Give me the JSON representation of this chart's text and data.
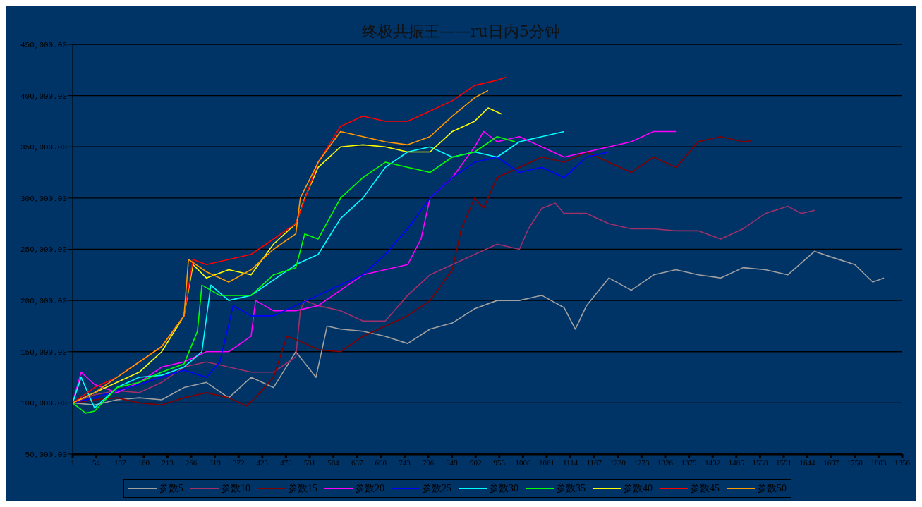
{
  "chart_data": {
    "type": "line",
    "title": "终极共振王——ru日内5分钟",
    "xlim": [
      1,
      1856
    ],
    "xticks": [
      1,
      54,
      107,
      160,
      213,
      266,
      319,
      372,
      425,
      478,
      531,
      584,
      637,
      690,
      743,
      796,
      849,
      902,
      955,
      1008,
      1061,
      1114,
      1167,
      1220,
      1273,
      1326,
      1379,
      1432,
      1485,
      1538,
      1591,
      1644,
      1697,
      1750,
      1803,
      1856
    ],
    "ylim": [
      50000,
      450000
    ],
    "yticks": [
      {
        "value": 50000,
        "label": "50,000.00"
      },
      {
        "value": 100000,
        "label": "100,000.00"
      },
      {
        "value": 150000,
        "label": "150,000.00"
      },
      {
        "value": 200000,
        "label": "200,000.00"
      },
      {
        "value": 250000,
        "label": "250,000.00"
      },
      {
        "value": 300000,
        "label": "300,000.00"
      },
      {
        "value": 350000,
        "label": "350,000.00"
      },
      {
        "value": 400000,
        "label": "400,000.00"
      },
      {
        "value": 450000,
        "label": "450,000.00"
      }
    ],
    "grid": "y",
    "legend": "bottom",
    "marker": "none",
    "line_style": "solid",
    "series": [
      {
        "name": "参数5",
        "color": "#a0a0a0",
        "x": [
          1,
          50,
          100,
          150,
          200,
          250,
          300,
          350,
          400,
          450,
          500,
          545,
          570,
          600,
          650,
          700,
          750,
          800,
          850,
          900,
          950,
          1000,
          1050,
          1100,
          1125,
          1150,
          1200,
          1250,
          1300,
          1350,
          1400,
          1450,
          1500,
          1550,
          1600,
          1660,
          1700,
          1750,
          1790,
          1815
        ],
        "values": [
          100000,
          98000,
          103000,
          105000,
          103000,
          115000,
          120000,
          105000,
          125000,
          115000,
          150000,
          125000,
          175000,
          172000,
          170000,
          165000,
          158000,
          172000,
          178000,
          192000,
          200000,
          200000,
          205000,
          193000,
          172000,
          195000,
          222000,
          210000,
          225000,
          230000,
          225000,
          222000,
          232000,
          230000,
          225000,
          248000,
          242000,
          235000,
          218000,
          222000
        ]
      },
      {
        "name": "参数10",
        "color": "#a0306a",
        "x": [
          1,
          50,
          100,
          150,
          200,
          250,
          300,
          350,
          400,
          450,
          500,
          510,
          520,
          550,
          600,
          650,
          700,
          750,
          800,
          850,
          900,
          950,
          1000,
          1020,
          1050,
          1080,
          1100,
          1150,
          1200,
          1250,
          1300,
          1350,
          1400,
          1450,
          1500,
          1550,
          1600,
          1630,
          1660
        ],
        "values": [
          100000,
          108000,
          112000,
          110000,
          120000,
          135000,
          140000,
          135000,
          130000,
          130000,
          145000,
          190000,
          200000,
          195000,
          190000,
          180000,
          180000,
          205000,
          225000,
          235000,
          245000,
          255000,
          250000,
          270000,
          290000,
          295000,
          285000,
          285000,
          275000,
          270000,
          270000,
          268000,
          268000,
          260000,
          270000,
          285000,
          292000,
          285000,
          288000
        ]
      },
      {
        "name": "参数15",
        "color": "#800000",
        "x": [
          1,
          50,
          100,
          150,
          200,
          250,
          300,
          350,
          390,
          420,
          450,
          480,
          500,
          550,
          600,
          650,
          700,
          750,
          800,
          850,
          870,
          900,
          920,
          950,
          1000,
          1050,
          1100,
          1150,
          1200,
          1250,
          1300,
          1350,
          1400,
          1450,
          1500,
          1520
        ],
        "values": [
          100000,
          103000,
          105000,
          100000,
          98000,
          105000,
          110000,
          105000,
          97000,
          110000,
          125000,
          165000,
          162000,
          152000,
          150000,
          165000,
          175000,
          185000,
          200000,
          230000,
          270000,
          300000,
          290000,
          320000,
          330000,
          340000,
          335000,
          345000,
          335000,
          325000,
          340000,
          330000,
          355000,
          360000,
          355000,
          356000
        ]
      },
      {
        "name": "参数20",
        "color": "#ff00ff",
        "x": [
          1,
          20,
          50,
          100,
          150,
          200,
          250,
          300,
          350,
          400,
          410,
          450,
          500,
          550,
          600,
          650,
          700,
          750,
          780,
          800,
          850,
          900,
          920,
          950,
          1000,
          1050,
          1100,
          1150,
          1200,
          1250,
          1300,
          1350
        ],
        "values": [
          100000,
          130000,
          118000,
          110000,
          120000,
          135000,
          140000,
          150000,
          150000,
          165000,
          200000,
          190000,
          190000,
          195000,
          210000,
          225000,
          230000,
          235000,
          260000,
          300000,
          320000,
          350000,
          365000,
          355000,
          360000,
          350000,
          340000,
          345000,
          350000,
          355000,
          365000,
          365000
        ]
      },
      {
        "name": "参数25",
        "color": "#0000ff",
        "x": [
          1,
          50,
          100,
          150,
          200,
          250,
          300,
          330,
          360,
          400,
          450,
          500,
          550,
          600,
          650,
          700,
          750,
          800,
          850,
          900,
          950,
          1000,
          1050,
          1100,
          1150,
          1200
        ],
        "values": [
          100000,
          105000,
          112000,
          118000,
          125000,
          132000,
          125000,
          140000,
          195000,
          185000,
          185000,
          195000,
          205000,
          215000,
          225000,
          245000,
          270000,
          300000,
          320000,
          335000,
          340000,
          325000,
          330000,
          320000,
          340000,
          345000
        ]
      },
      {
        "name": "参数30",
        "color": "#00ffff",
        "x": [
          1,
          20,
          50,
          100,
          150,
          200,
          250,
          290,
          310,
          350,
          400,
          450,
          500,
          550,
          600,
          650,
          700,
          750,
          800,
          850,
          900,
          950,
          1000,
          1050,
          1100
        ],
        "values": [
          100000,
          125000,
          95000,
          115000,
          125000,
          127000,
          135000,
          150000,
          215000,
          200000,
          205000,
          220000,
          235000,
          245000,
          280000,
          300000,
          330000,
          345000,
          350000,
          340000,
          345000,
          340000,
          355000,
          360000,
          365000
        ]
      },
      {
        "name": "参数35",
        "color": "#00ff00",
        "x": [
          1,
          30,
          50,
          100,
          150,
          200,
          250,
          280,
          290,
          330,
          400,
          450,
          500,
          520,
          550,
          600,
          650,
          700,
          750,
          800,
          850,
          900,
          950,
          990
        ],
        "values": [
          100000,
          90000,
          92000,
          115000,
          120000,
          130000,
          138000,
          170000,
          215000,
          205000,
          205000,
          225000,
          232000,
          265000,
          260000,
          300000,
          320000,
          335000,
          330000,
          325000,
          340000,
          345000,
          360000,
          355000
        ]
      },
      {
        "name": "参数40",
        "color": "#ffff00",
        "x": [
          1,
          50,
          100,
          150,
          200,
          250,
          270,
          300,
          350,
          400,
          450,
          500,
          520,
          550,
          600,
          650,
          700,
          750,
          800,
          850,
          900,
          930,
          960
        ],
        "values": [
          100000,
          110000,
          120000,
          130000,
          150000,
          185000,
          235000,
          222000,
          230000,
          225000,
          255000,
          275000,
          300000,
          330000,
          350000,
          352000,
          350000,
          345000,
          345000,
          365000,
          375000,
          388000,
          382000
        ]
      },
      {
        "name": "参数45",
        "color": "#ff0000",
        "x": [
          1,
          50,
          100,
          150,
          200,
          250,
          270,
          300,
          350,
          400,
          450,
          500,
          550,
          600,
          650,
          700,
          750,
          800,
          850,
          900,
          950,
          970
        ],
        "values": [
          100000,
          115000,
          125000,
          140000,
          155000,
          185000,
          240000,
          235000,
          240000,
          245000,
          260000,
          275000,
          335000,
          370000,
          380000,
          375000,
          375000,
          385000,
          395000,
          410000,
          415000,
          418000
        ]
      },
      {
        "name": "参数50",
        "color": "#ff9900",
        "x": [
          1,
          50,
          100,
          150,
          200,
          250,
          260,
          300,
          350,
          400,
          450,
          500,
          510,
          550,
          600,
          650,
          700,
          750,
          800,
          850,
          900,
          930
        ],
        "values": [
          100000,
          110000,
          125000,
          140000,
          155000,
          185000,
          240000,
          228000,
          218000,
          230000,
          250000,
          265000,
          300000,
          335000,
          365000,
          360000,
          355000,
          352000,
          360000,
          380000,
          398000,
          405000
        ]
      }
    ]
  }
}
